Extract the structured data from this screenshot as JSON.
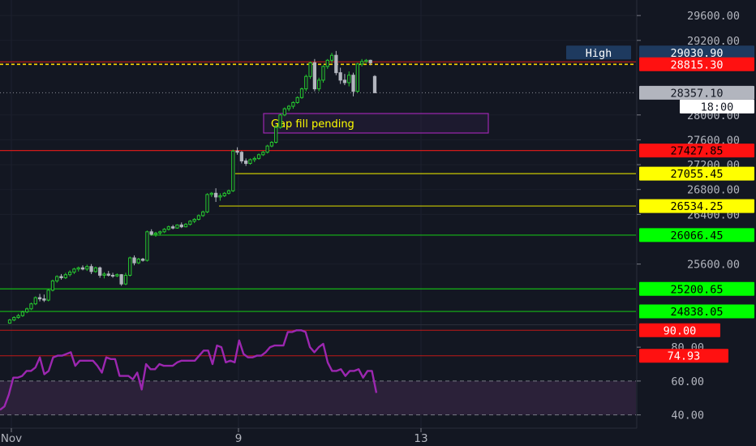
{
  "chart_data": [
    {
      "type": "candlestick",
      "axis": {
        "y_ticks": [
          "29600.00",
          "29200.00",
          "28000.00",
          "27600.00",
          "27200.00",
          "26800.00",
          "26400.00",
          "25600.00"
        ],
        "y_tick_values": [
          29600,
          29200,
          28000,
          27600,
          27200,
          26800,
          26400,
          25600
        ],
        "x_ticks": [
          "Nov",
          "9",
          "13"
        ],
        "ylim": [
          24630,
          29850
        ]
      },
      "last_price": "28357.10",
      "countdown": "18:00",
      "high_label": {
        "label": "High",
        "value": "29030.90"
      },
      "levels": [
        {
          "value": 28815.3,
          "label": "28815.30",
          "color": "#ff1111",
          "text_color": "#ffffff",
          "style": "dashed",
          "line_color": "#ffd400"
        },
        {
          "value": 27427.85,
          "label": "27427.85",
          "color": "#ff1111",
          "text_color": "#000000",
          "style": "solid",
          "line_color": "#d21a1a"
        },
        {
          "value": 27055.45,
          "label": "27055.45",
          "color": "#ffff00",
          "text_color": "#000000",
          "style": "solid",
          "line_color": "#c9c900"
        },
        {
          "value": 26534.25,
          "label": "26534.25",
          "color": "#ffff00",
          "text_color": "#000000",
          "style": "solid",
          "line_color": "#c9c900"
        },
        {
          "value": 26066.45,
          "label": "26066.45",
          "color": "#00ff00",
          "text_color": "#000000",
          "style": "solid",
          "line_color": "#16b816"
        },
        {
          "value": 25200.65,
          "label": "25200.65",
          "color": "#00ff00",
          "text_color": "#000000",
          "style": "solid",
          "line_color": "#16b816"
        },
        {
          "value": 24838.05,
          "label": "24838.05",
          "color": "#00ff00",
          "text_color": "#000000",
          "style": "solid",
          "line_color": "#16b816"
        }
      ],
      "annotation": "Gap fill pending",
      "candles": [
        [
          24650,
          24720,
          24640,
          24700
        ],
        [
          24700,
          24760,
          24680,
          24740
        ],
        [
          24740,
          24800,
          24720,
          24770
        ],
        [
          24770,
          24850,
          24750,
          24830
        ],
        [
          24830,
          24900,
          24810,
          24880
        ],
        [
          24880,
          24980,
          24860,
          24960
        ],
        [
          24960,
          25080,
          24940,
          25060
        ],
        [
          25060,
          25120,
          25000,
          25040
        ],
        [
          25040,
          25110,
          24990,
          25020
        ],
        [
          25020,
          25200,
          25000,
          25180
        ],
        [
          25180,
          25350,
          25160,
          25330
        ],
        [
          25330,
          25420,
          25300,
          25400
        ],
        [
          25400,
          25440,
          25350,
          25380
        ],
        [
          25380,
          25460,
          25360,
          25430
        ],
        [
          25430,
          25500,
          25400,
          25470
        ],
        [
          25470,
          25540,
          25440,
          25520
        ],
        [
          25520,
          25560,
          25480,
          25540
        ],
        [
          25540,
          25580,
          25500,
          25520
        ],
        [
          25520,
          25590,
          25490,
          25560
        ],
        [
          25560,
          25600,
          25440,
          25480
        ],
        [
          25480,
          25560,
          25460,
          25540
        ],
        [
          25540,
          25560,
          25380,
          25420
        ],
        [
          25420,
          25470,
          25370,
          25440
        ],
        [
          25440,
          25490,
          25400,
          25420
        ],
        [
          25420,
          25460,
          25380,
          25410
        ],
        [
          25410,
          25450,
          25390,
          25430
        ],
        [
          25430,
          25440,
          25250,
          25280
        ],
        [
          25280,
          25460,
          25260,
          25420
        ],
        [
          25420,
          25720,
          25400,
          25700
        ],
        [
          25700,
          25740,
          25580,
          25620
        ],
        [
          25620,
          25700,
          25600,
          25680
        ],
        [
          25680,
          25700,
          25640,
          25660
        ],
        [
          25660,
          26140,
          25640,
          26120
        ],
        [
          26120,
          26160,
          26060,
          26080
        ],
        [
          26080,
          26120,
          26040,
          26100
        ],
        [
          26100,
          26140,
          26060,
          26120
        ],
        [
          26120,
          26180,
          26100,
          26160
        ],
        [
          26160,
          26220,
          26140,
          26200
        ],
        [
          26200,
          26230,
          26160,
          26180
        ],
        [
          26180,
          26240,
          26170,
          26230
        ],
        [
          26230,
          26270,
          26180,
          26200
        ],
        [
          26200,
          26260,
          26190,
          26240
        ],
        [
          26240,
          26310,
          26220,
          26290
        ],
        [
          26290,
          26340,
          26260,
          26320
        ],
        [
          26320,
          26400,
          26300,
          26380
        ],
        [
          26380,
          26460,
          26360,
          26440
        ],
        [
          26440,
          26740,
          26420,
          26720
        ],
        [
          26720,
          26760,
          26680,
          26740
        ],
        [
          26740,
          26820,
          26600,
          26680
        ],
        [
          26680,
          26740,
          26620,
          26700
        ],
        [
          26700,
          26760,
          26680,
          26740
        ],
        [
          26740,
          26800,
          26720,
          26780
        ],
        [
          26780,
          27440,
          26760,
          27420
        ],
        [
          27420,
          27480,
          27360,
          27400
        ],
        [
          27400,
          27420,
          27220,
          27260
        ],
        [
          27260,
          27300,
          27180,
          27220
        ],
        [
          27220,
          27300,
          27200,
          27280
        ],
        [
          27280,
          27330,
          27240,
          27300
        ],
        [
          27300,
          27380,
          27280,
          27360
        ],
        [
          27360,
          27420,
          27340,
          27400
        ],
        [
          27400,
          27520,
          27380,
          27500
        ],
        [
          27500,
          27580,
          27480,
          27560
        ],
        [
          27560,
          27840,
          27540,
          27800
        ],
        [
          27800,
          28020,
          27780,
          28000
        ],
        [
          28000,
          28120,
          27980,
          28100
        ],
        [
          28100,
          28160,
          28060,
          28140
        ],
        [
          28140,
          28220,
          28100,
          28200
        ],
        [
          28200,
          28300,
          28180,
          28280
        ],
        [
          28280,
          28440,
          28260,
          28420
        ],
        [
          28420,
          28650,
          28380,
          28620
        ],
        [
          28620,
          28860,
          28580,
          28840
        ],
        [
          28840,
          28900,
          28380,
          28420
        ],
        [
          28420,
          28600,
          28380,
          28560
        ],
        [
          28560,
          28800,
          28520,
          28780
        ],
        [
          28780,
          28900,
          28740,
          28880
        ],
        [
          28880,
          29000,
          28840,
          28960
        ],
        [
          28960,
          29030,
          28640,
          28680
        ],
        [
          28680,
          28760,
          28500,
          28560
        ],
        [
          28560,
          28660,
          28480,
          28520
        ],
        [
          28520,
          28700,
          28460,
          28640
        ],
        [
          28640,
          28680,
          28300,
          28380
        ],
        [
          28380,
          28840,
          28360,
          28820
        ],
        [
          28820,
          28900,
          28780,
          28860
        ],
        [
          28860,
          28900,
          28840,
          28880
        ],
        [
          28880,
          28890,
          28800,
          28840
        ],
        [
          28620,
          28640,
          28357.1,
          28357.1
        ]
      ]
    },
    {
      "type": "line",
      "name": "oscillator",
      "axis": {
        "y_ticks": [
          "80.00",
          "60.00",
          "40.00"
        ],
        "y_tick_values": [
          80,
          60,
          40
        ],
        "ylim": [
          36,
          93
        ]
      },
      "levels": [
        {
          "value": 90.0,
          "label": "90.00",
          "color": "#ff1111",
          "text_color": "#ffffff"
        },
        {
          "value": 74.93,
          "label": "74.93",
          "color": "#ff1111",
          "text_color": "#ffffff"
        }
      ],
      "dashed_levels": [
        60,
        40
      ],
      "values": [
        43,
        45,
        52,
        62,
        62,
        63,
        66,
        66,
        68,
        74,
        64,
        66,
        74,
        75,
        75,
        76,
        77,
        69,
        72,
        72,
        72,
        72,
        69,
        65,
        74,
        73,
        73,
        63,
        63,
        63,
        61,
        65,
        55,
        70,
        67,
        67,
        70,
        69,
        69,
        69,
        71,
        72,
        72,
        72,
        72,
        75,
        78,
        78,
        70,
        81,
        80,
        71,
        72,
        71,
        84,
        76,
        74,
        74,
        75,
        75,
        77,
        80,
        81,
        81,
        81,
        89,
        89,
        90,
        90,
        89,
        80,
        77,
        80,
        82,
        71,
        66,
        66,
        67,
        63,
        66,
        66,
        67,
        62,
        66,
        66,
        53
      ]
    }
  ]
}
